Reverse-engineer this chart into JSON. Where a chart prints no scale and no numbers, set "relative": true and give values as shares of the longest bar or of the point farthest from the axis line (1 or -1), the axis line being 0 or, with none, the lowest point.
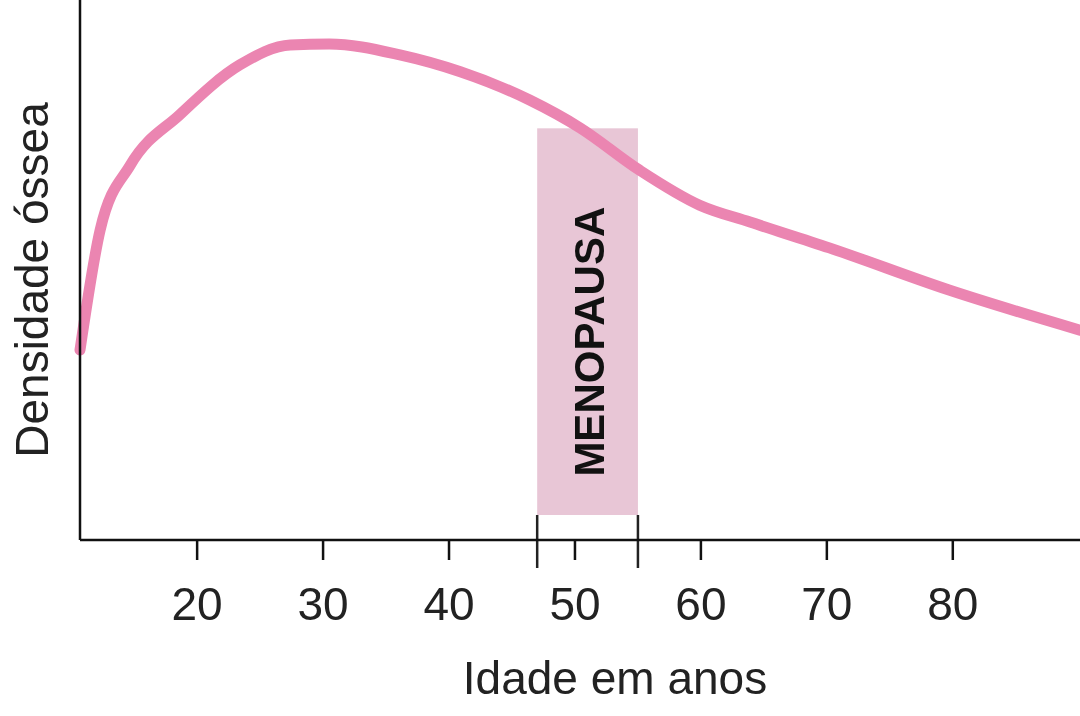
{
  "chart_data": {
    "type": "line",
    "relative": true,
    "xlabel": "Idade em anos",
    "ylabel": "Densidade óssea",
    "xlim": [
      10.7,
      90.1
    ],
    "xticks": [
      20,
      30,
      40,
      50,
      60,
      70,
      80
    ],
    "grid": false,
    "marker": "none",
    "line_style": "solid",
    "series": [
      {
        "color": "#eb85b1",
        "x": [
          10.7,
          12.3,
          14.7,
          18.6,
          23.4,
          27.4,
          30.5,
          36.1,
          40.9,
          46.4,
          50.4,
          55.1,
          59.9,
          63.9,
          70.2,
          79.7,
          90.1
        ],
        "values": [
          0.383,
          0.625,
          0.756,
          0.857,
          0.958,
          0.998,
          1,
          0.978,
          0.944,
          0.887,
          0.831,
          0.746,
          0.675,
          0.641,
          0.589,
          0.504,
          0.423
        ]
      }
    ],
    "bands": [
      {
        "axis": "x",
        "from": 47,
        "to": 55,
        "label": "MENOPAUSA",
        "color": "#e8c6d6"
      }
    ]
  }
}
